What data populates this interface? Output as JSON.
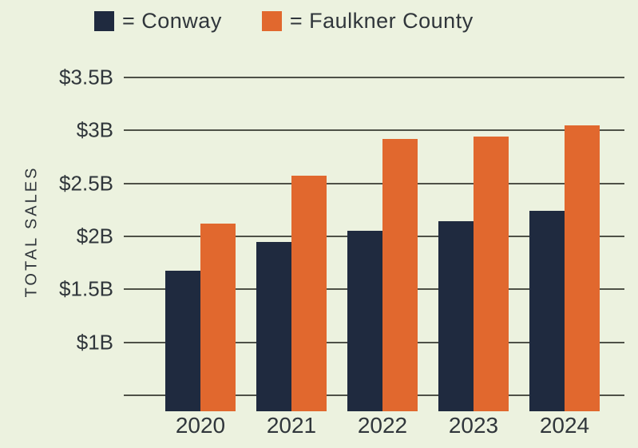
{
  "colors": {
    "background": "#ECF2DF",
    "text": "#30363B",
    "gridline": "#4E5147",
    "navy": "#1F2A3F",
    "orange": "#E1682E"
  },
  "legend": {
    "items": [
      {
        "label": "= Conway",
        "color": "#1F2A3F"
      },
      {
        "label": "= Faulkner County",
        "color": "#E1682E"
      }
    ]
  },
  "chart_data": {
    "type": "bar",
    "title": "",
    "xlabel": "",
    "ylabel": "TOTAL SALES",
    "categories": [
      "2020",
      "2021",
      "2022",
      "2023",
      "2024"
    ],
    "series": [
      {
        "name": "Conway",
        "color": "#1F2A3F",
        "values": [
          1.68,
          1.95,
          2.05,
          2.14,
          2.24
        ]
      },
      {
        "name": "Faulkner County",
        "color": "#E1682E",
        "values": [
          2.12,
          2.57,
          2.92,
          2.94,
          3.05
        ]
      }
    ],
    "values_unit": "$B",
    "y_ticks": [
      {
        "value": 3.5,
        "label": "$3.5B"
      },
      {
        "value": 3.0,
        "label": "$3B"
      },
      {
        "value": 2.5,
        "label": "$2.5B"
      },
      {
        "value": 2.0,
        "label": "$2B"
      },
      {
        "value": 1.5,
        "label": "$1.5B"
      },
      {
        "value": 1.0,
        "label": "$1B"
      },
      {
        "value": 0.5,
        "label": ""
      }
    ],
    "ylim": [
      0.35,
      3.5
    ],
    "grid": true,
    "legend_position": "top"
  }
}
